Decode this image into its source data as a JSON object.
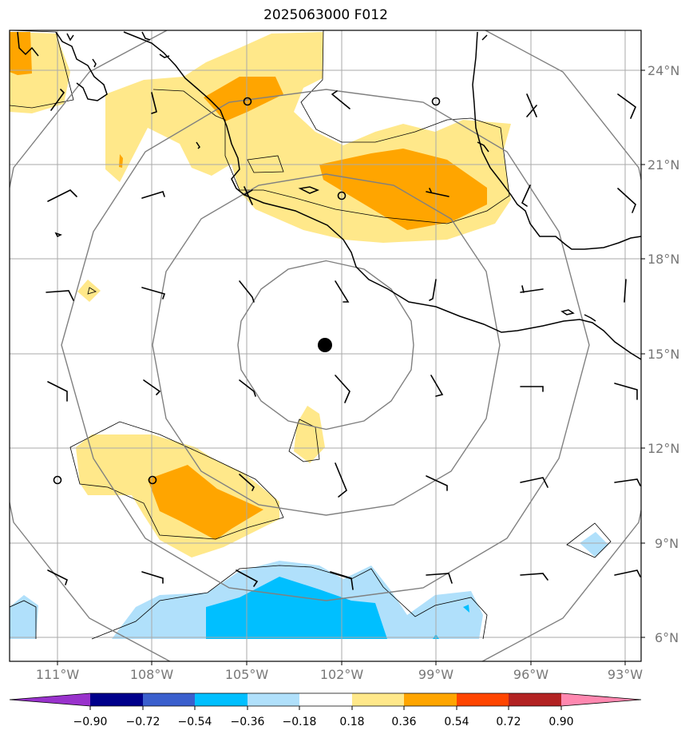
{
  "title": "2025063000 F012",
  "map": {
    "lon_ticks": [
      "111°W",
      "108°W",
      "105°W",
      "102°W",
      "99°W",
      "96°W",
      "93°W"
    ],
    "lat_ticks": [
      "24°N",
      "21°N",
      "18°N",
      "15°N",
      "12°N",
      "9°N",
      "6°N"
    ],
    "lon_range": [
      -112.5,
      -92.5
    ],
    "lat_range": [
      5.3,
      25.3
    ],
    "center": {
      "lon": -102.5,
      "lat": 15.25
    },
    "range_rings": 5,
    "colors": {
      "coast": "#000000",
      "grid": "#aaaaaa",
      "rings": "#808080",
      "positive_light": "#ffe88a",
      "positive_mid": "#ffa500",
      "negative_light": "#b0e0fb",
      "negative_mid": "#00bfff"
    }
  },
  "colorbar": {
    "ticks": [
      "−0.90",
      "−0.72",
      "−0.54",
      "−0.36",
      "−0.18",
      "0.18",
      "0.36",
      "0.54",
      "0.72",
      "0.90"
    ],
    "colors": [
      "#9932cc",
      "#00008b",
      "#3a5fcd",
      "#00bfff",
      "#b0e0fb",
      "#ffffff",
      "#ffe88a",
      "#ffa500",
      "#ff4500",
      "#b22222",
      "#ff88b0"
    ]
  }
}
